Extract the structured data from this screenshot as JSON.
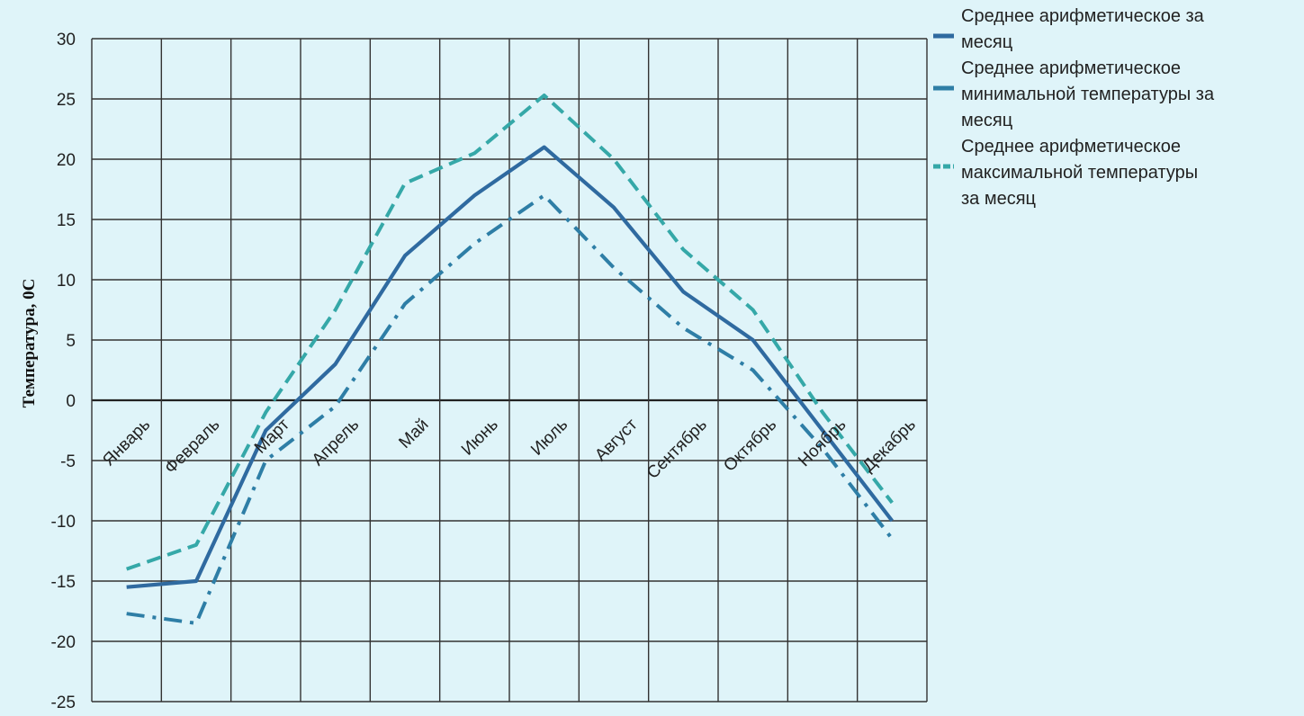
{
  "chart_data": {
    "type": "line",
    "title": "",
    "xlabel": "",
    "ylabel": "Температура, 0С",
    "ylim": [
      -25,
      30
    ],
    "yticks": [
      30,
      25,
      20,
      15,
      10,
      5,
      0,
      -5,
      -10,
      -15,
      -20,
      -25
    ],
    "grid": true,
    "legend_position": "top-right",
    "categories": [
      "Январь",
      "Февраль",
      "Март",
      "Апрель",
      "Май",
      "Июнь",
      "Июль",
      "Август",
      "Сентябрь",
      "Октябрь",
      "Ноябрь",
      "Декабрь"
    ],
    "series": [
      {
        "name": "Среднее арифметическое за месяц",
        "legend_lines": [
          "Среднее арифметическое за",
          "месяц"
        ],
        "color": "#2f6aa0",
        "style": "solid",
        "values": [
          -15.5,
          -15,
          -2.5,
          3,
          12,
          17,
          21,
          16,
          9,
          5,
          -2.5,
          -10
        ]
      },
      {
        "name": "Среднее арифметическое минимальной температуры за месяц",
        "legend_lines": [
          "Среднее арифметическое",
          "минимальной температуры за",
          "месяц"
        ],
        "color": "#2e7ea6",
        "style": "dashdot",
        "values": [
          -17.7,
          -18.5,
          -5,
          -0.5,
          8,
          13,
          17,
          11,
          6,
          2.5,
          -4,
          -11.5
        ]
      },
      {
        "name": "Среднее арифметическое максимальной температуры за месяц",
        "legend_lines": [
          "Среднее арифметическое",
          "максимальной температуры",
          "за месяц"
        ],
        "color": "#35a8a8",
        "style": "dashed",
        "values": [
          -14,
          -12,
          -1,
          7.5,
          18,
          20.5,
          25.3,
          20,
          12.5,
          7.5,
          -1,
          -8.5
        ]
      }
    ]
  }
}
